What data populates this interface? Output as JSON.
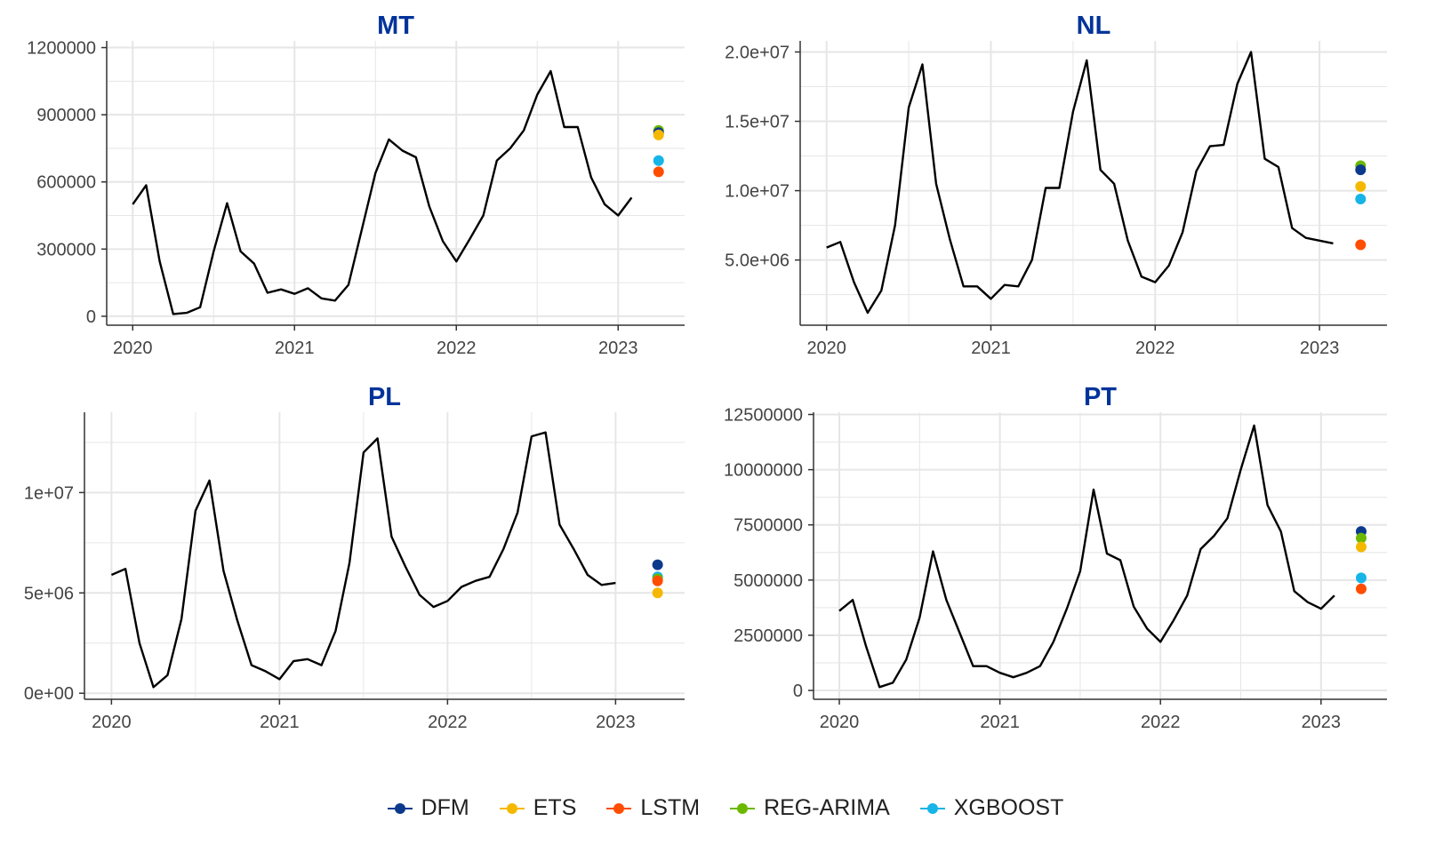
{
  "chart_data": [
    {
      "type": "line",
      "title": "MT",
      "xlabel": "",
      "ylabel": "",
      "x_ticks": [
        "2020",
        "2021",
        "2022",
        "2023"
      ],
      "y_ticks": [
        "0",
        "300000",
        "600000",
        "900000",
        "1200000"
      ],
      "y_tick_values": [
        0,
        300000,
        600000,
        900000,
        1200000
      ],
      "ylim": [
        -40000,
        1230000
      ],
      "x_start": "2020-01",
      "series": [
        {
          "values": [
            500000,
            585000,
            245000,
            10000,
            15000,
            40000,
            290000,
            505000,
            290000,
            235000,
            105000,
            120000,
            100000,
            125000,
            80000,
            70000,
            140000,
            390000,
            640000,
            790000,
            740000,
            710000,
            490000,
            335000,
            245000,
            345000,
            450000,
            695000,
            750000,
            830000,
            990000,
            1095000,
            845000,
            845000,
            620000,
            500000,
            450000,
            530000
          ]
        }
      ],
      "forecast_date": "2023-04",
      "forecasts": [
        {
          "model": "REG-ARIMA",
          "value": 830000
        },
        {
          "model": "DFM",
          "value": 820000
        },
        {
          "model": "ETS",
          "value": 810000
        },
        {
          "model": "XGBOOST",
          "value": 695000
        },
        {
          "model": "LSTM",
          "value": 645000
        }
      ]
    },
    {
      "type": "line",
      "title": "NL",
      "xlabel": "",
      "ylabel": "",
      "x_ticks": [
        "2020",
        "2021",
        "2022",
        "2023"
      ],
      "y_ticks": [
        "5.0e+06",
        "1.0e+07",
        "1.5e+07",
        "2.0e+07"
      ],
      "y_tick_values": [
        5000000,
        10000000,
        15000000,
        20000000
      ],
      "ylim": [
        300000,
        20800000
      ],
      "x_start": "2020-01",
      "series": [
        {
          "values": [
            5900000,
            6300000,
            3400000,
            1200000,
            2800000,
            7500000,
            16000000,
            19100000,
            10500000,
            6500000,
            3100000,
            3100000,
            2200000,
            3200000,
            3100000,
            5000000,
            10200000,
            10200000,
            15700000,
            19400000,
            11500000,
            10500000,
            6400000,
            3800000,
            3400000,
            4600000,
            7000000,
            11400000,
            13200000,
            13300000,
            17700000,
            20000000,
            12300000,
            11700000,
            7300000,
            6600000,
            6400000,
            6200000
          ]
        }
      ],
      "forecast_date": "2023-04",
      "forecasts": [
        {
          "model": "REG-ARIMA",
          "value": 11800000
        },
        {
          "model": "DFM",
          "value": 11500000
        },
        {
          "model": "ETS",
          "value": 10300000
        },
        {
          "model": "XGBOOST",
          "value": 9400000
        },
        {
          "model": "LSTM",
          "value": 6100000
        }
      ]
    },
    {
      "type": "line",
      "title": "PL",
      "xlabel": "",
      "ylabel": "",
      "x_ticks": [
        "2020",
        "2021",
        "2022",
        "2023"
      ],
      "y_ticks": [
        "0e+00",
        "5e+06",
        "1e+07"
      ],
      "y_tick_values": [
        0,
        5000000,
        10000000
      ],
      "ylim": [
        -300000,
        14000000
      ],
      "x_start": "2020-01",
      "series": [
        {
          "values": [
            5900000,
            6200000,
            2500000,
            300000,
            900000,
            3700000,
            9100000,
            10600000,
            6100000,
            3600000,
            1400000,
            1100000,
            700000,
            1600000,
            1700000,
            1400000,
            3100000,
            6500000,
            12000000,
            12700000,
            7800000,
            6300000,
            4900000,
            4300000,
            4600000,
            5300000,
            5600000,
            5800000,
            7200000,
            9000000,
            12800000,
            13000000,
            8400000,
            7200000,
            5900000,
            5400000,
            5500000
          ]
        }
      ],
      "forecast_date": "2023-04",
      "forecasts": [
        {
          "model": "DFM",
          "value": 6400000
        },
        {
          "model": "XGBOOST",
          "value": 5800000
        },
        {
          "model": "REG-ARIMA",
          "value": 5700000
        },
        {
          "model": "LSTM",
          "value": 5600000
        },
        {
          "model": "ETS",
          "value": 5000000
        }
      ]
    },
    {
      "type": "line",
      "title": "PT",
      "xlabel": "",
      "ylabel": "",
      "x_ticks": [
        "2020",
        "2021",
        "2022",
        "2023"
      ],
      "y_ticks": [
        "0",
        "2500000",
        "5000000",
        "7500000",
        "10000000",
        "12500000"
      ],
      "y_tick_values": [
        0,
        2500000,
        5000000,
        7500000,
        10000000,
        12500000
      ],
      "ylim": [
        -400000,
        12600000
      ],
      "x_start": "2020-01",
      "series": [
        {
          "values": [
            3600000,
            4100000,
            2000000,
            150000,
            350000,
            1400000,
            3300000,
            6300000,
            4100000,
            2600000,
            1100000,
            1100000,
            800000,
            600000,
            800000,
            1100000,
            2200000,
            3700000,
            5400000,
            9100000,
            6200000,
            5900000,
            3800000,
            2800000,
            2200000,
            3200000,
            4300000,
            6400000,
            7000000,
            7800000,
            10000000,
            12000000,
            8400000,
            7200000,
            4500000,
            4000000,
            3700000,
            4300000
          ]
        }
      ],
      "forecast_date": "2023-04",
      "forecasts": [
        {
          "model": "DFM",
          "value": 7200000
        },
        {
          "model": "REG-ARIMA",
          "value": 6900000
        },
        {
          "model": "ETS",
          "value": 6500000
        },
        {
          "model": "XGBOOST",
          "value": 5100000
        },
        {
          "model": "LSTM",
          "value": 4600000
        }
      ]
    }
  ],
  "legend": {
    "position": "bottom",
    "items": [
      {
        "label": "DFM",
        "color": "#0b3a8c"
      },
      {
        "label": "ETS",
        "color": "#f5b800"
      },
      {
        "label": "LSTM",
        "color": "#ff4d00"
      },
      {
        "label": "REG-ARIMA",
        "color": "#6cb800"
      },
      {
        "label": "XGBOOST",
        "color": "#17b4e8"
      }
    ]
  },
  "colors": {
    "title": "#003399",
    "line": "#000000",
    "grid": "#e6e6e6"
  }
}
